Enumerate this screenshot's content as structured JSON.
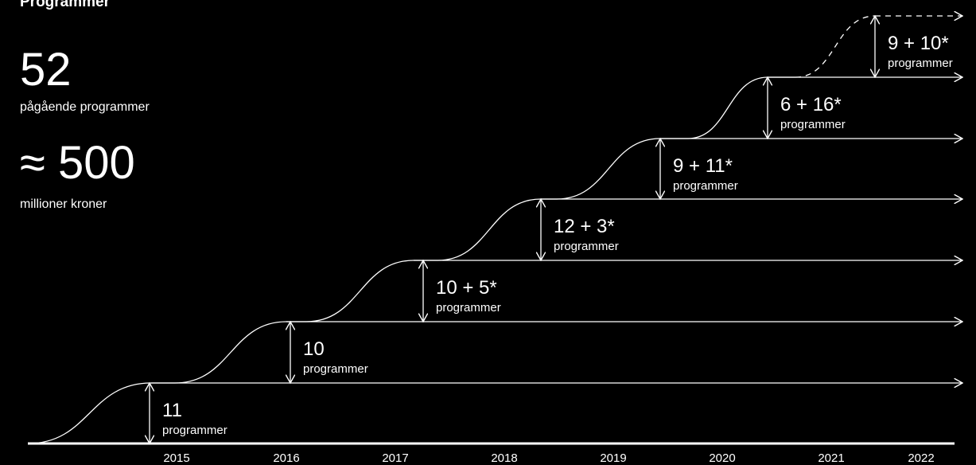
{
  "header": {
    "title": "Programmer"
  },
  "stats": [
    {
      "value": "52",
      "label": "pågående programmer"
    },
    {
      "value": "≈ 500",
      "label": "millioner kroner"
    }
  ],
  "steps": [
    {
      "count": "11",
      "unit": "programmer"
    },
    {
      "count": "10",
      "unit": "programmer"
    },
    {
      "count": "10 + 5*",
      "unit": "programmer"
    },
    {
      "count": "12 + 3*",
      "unit": "programmer"
    },
    {
      "count": "9 + 11*",
      "unit": "programmer"
    },
    {
      "count": "6 + 16*",
      "unit": "programmer"
    },
    {
      "count": "9 + 10*",
      "unit": "programmer"
    }
  ],
  "years": [
    "2015",
    "2016",
    "2017",
    "2018",
    "2019",
    "2020",
    "2021",
    "2022"
  ]
}
